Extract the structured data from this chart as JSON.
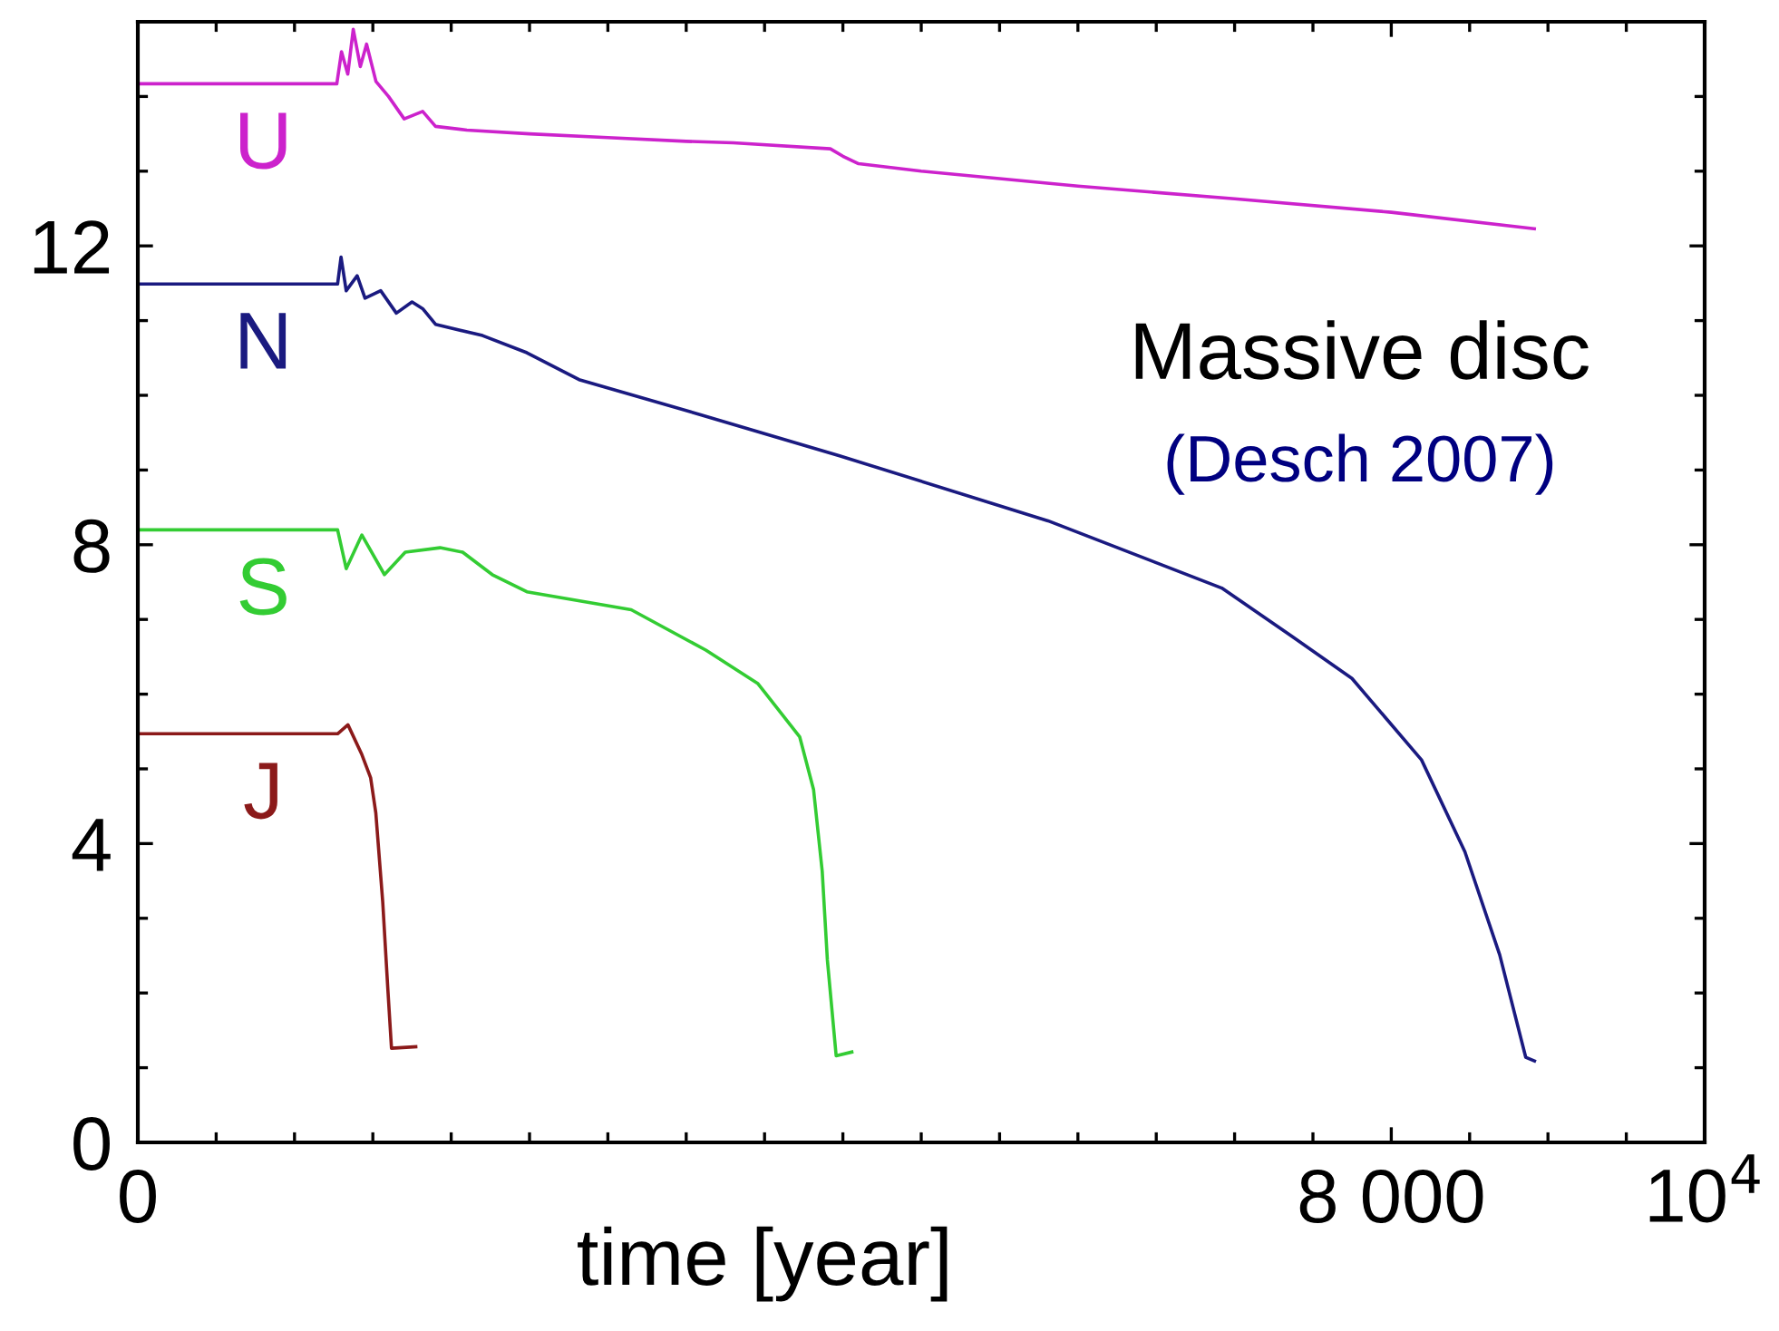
{
  "chart_data": {
    "type": "line",
    "xlabel": "time [year]",
    "xlim": [
      0,
      10000
    ],
    "ylim": [
      0,
      15
    ],
    "xticks": [
      {
        "value": 0,
        "label": "0"
      },
      {
        "value": 500,
        "label": null
      },
      {
        "value": 1000,
        "label": null
      },
      {
        "value": 1500,
        "label": null
      },
      {
        "value": 2000,
        "label": null
      },
      {
        "value": 2500,
        "label": null
      },
      {
        "value": 3000,
        "label": null
      },
      {
        "value": 3500,
        "label": null
      },
      {
        "value": 4000,
        "label": null
      },
      {
        "value": 4500,
        "label": null
      },
      {
        "value": 5000,
        "label": null
      },
      {
        "value": 5500,
        "label": null
      },
      {
        "value": 6000,
        "label": null
      },
      {
        "value": 6500,
        "label": null
      },
      {
        "value": 7000,
        "label": null
      },
      {
        "value": 7500,
        "label": null
      },
      {
        "value": 8000,
        "label": "8 000"
      },
      {
        "value": 8500,
        "label": null
      },
      {
        "value": 9000,
        "label": null
      },
      {
        "value": 9500,
        "label": null
      },
      {
        "value": 10000,
        "label": "10$^{4}$"
      }
    ],
    "yticks": [
      0,
      {
        "value": 1,
        "label": null
      },
      {
        "value": 2,
        "label": null
      },
      {
        "value": 3,
        "label": null
      },
      4,
      {
        "value": 5,
        "label": null
      },
      {
        "value": 6,
        "label": null
      },
      {
        "value": 7,
        "label": null
      },
      8,
      {
        "value": 9,
        "label": null
      },
      {
        "value": 10,
        "label": null
      },
      {
        "value": 11,
        "label": null
      },
      12,
      {
        "value": 13,
        "label": null
      },
      {
        "value": 14,
        "label": null
      }
    ],
    "grid": false,
    "legend": false,
    "series": [
      {
        "name": "U",
        "color": "#cc22cc",
        "x": [
          0,
          600,
          1270,
          1300,
          1340,
          1375,
          1420,
          1460,
          1520,
          1600,
          1700,
          1818,
          1900,
          2100,
          2500,
          3000,
          3500,
          3800,
          4420,
          4500,
          4600,
          5000,
          6000,
          7000,
          8000,
          8913
        ],
        "values": [
          14.17,
          14.17,
          14.17,
          14.6,
          14.3,
          14.9,
          14.4,
          14.7,
          14.2,
          14.0,
          13.7,
          13.8,
          13.6,
          13.55,
          13.5,
          13.45,
          13.4,
          13.38,
          13.3,
          13.2,
          13.1,
          13.0,
          12.8,
          12.63,
          12.45,
          12.23
        ]
      },
      {
        "name": "N",
        "color": "#1a1a80",
        "x": [
          0,
          600,
          1275,
          1297,
          1330,
          1400,
          1450,
          1550,
          1650,
          1750,
          1818,
          1900,
          2200,
          2483,
          2816,
          3592,
          4479,
          5809,
          6918,
          7361,
          7749,
          8193,
          8470,
          8692,
          8858,
          8914
        ],
        "values": [
          11.49,
          11.49,
          11.49,
          11.85,
          11.4,
          11.6,
          11.3,
          11.4,
          11.1,
          11.25,
          11.16,
          10.95,
          10.8,
          10.57,
          10.21,
          9.74,
          9.19,
          8.32,
          7.42,
          6.78,
          6.21,
          5.12,
          3.89,
          2.51,
          1.14,
          1.09
        ]
      },
      {
        "name": "S",
        "color": "#33cc33",
        "x": [
          0,
          1275,
          1330,
          1430,
          1574,
          1707,
          1929,
          2073,
          2262,
          2483,
          3149,
          3625,
          3958,
          4224,
          4313,
          4368,
          4401,
          4457,
          4557
        ],
        "values": [
          8.2,
          8.2,
          7.68,
          8.13,
          7.6,
          7.9,
          7.96,
          7.9,
          7.6,
          7.37,
          7.13,
          6.59,
          6.14,
          5.43,
          4.72,
          3.63,
          2.44,
          1.16,
          1.21
        ]
      },
      {
        "name": "J",
        "color": "#8b1a1a",
        "x": [
          0,
          1275,
          1341,
          1430,
          1486,
          1519,
          1563,
          1596,
          1619,
          1774
        ],
        "values": [
          5.47,
          5.47,
          5.59,
          5.19,
          4.88,
          4.41,
          3.22,
          2.04,
          1.26,
          1.28
        ]
      }
    ],
    "annotations": [
      "Massive disc",
      "(Desch 2007)"
    ]
  }
}
